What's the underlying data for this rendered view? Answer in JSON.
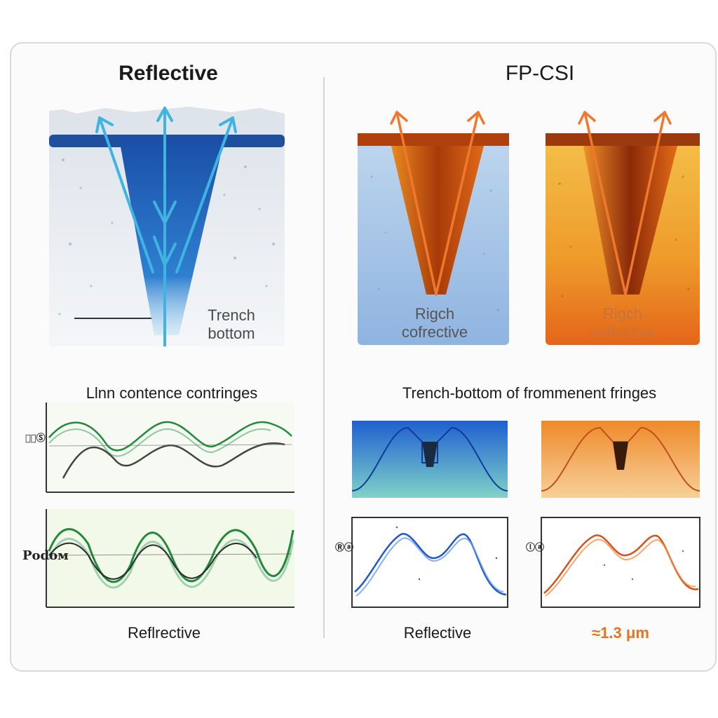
{
  "left": {
    "title": "Reflective",
    "trench_label_line1": "Trench",
    "trench_label_line2": "bottom",
    "fringes_title": "Llnn contence contringes",
    "chart_top_ylabel": "Ⓡ͟Ⓢ",
    "chart_bottom_ylabel": "Pоdом",
    "caption": "Reflrective"
  },
  "right": {
    "title": "FP-CSI",
    "panel_a_line1": "Rigch",
    "panel_a_line2": "cofrective",
    "panel_b_line1": "Rigch",
    "panel_b_line2": "coflective",
    "fringes_title": "Trench-bottom of frommenent fringes",
    "chart_a_ylabel": "Ⓡⓐ",
    "chart_b_ylabel": "ⓛⓐ",
    "caption_a": "Reflective",
    "caption_b": "≈1.3 μm",
    "caption_b_color": "#e8731e"
  },
  "colors": {
    "blue_accent": "#1e5fb8",
    "cyan_ray": "#3fb6e0",
    "orange_accent": "#e8731e",
    "green_wave": "#1f8a3a",
    "blue_wave": "#1d58d0",
    "orange_wave": "#d8501a"
  }
}
